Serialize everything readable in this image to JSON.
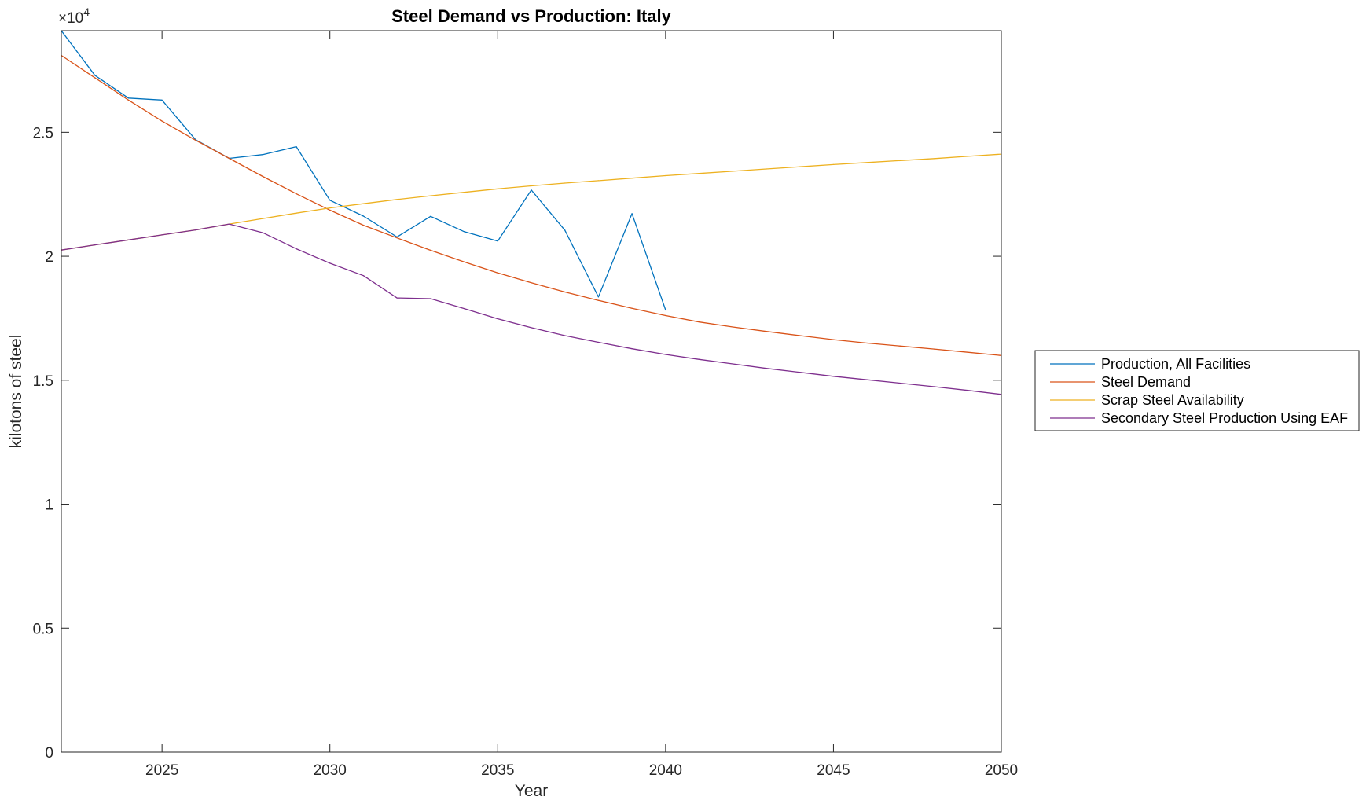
{
  "chart_data": {
    "type": "line",
    "title": "Steel Demand vs Production: Italy",
    "xlabel": "Year",
    "ylabel": "kilotons of steel",
    "y_exponent_label": "×10",
    "y_exponent": "4",
    "xlim": [
      2022,
      2050
    ],
    "ylim": [
      0,
      29100
    ],
    "xticks": [
      2025,
      2030,
      2035,
      2040,
      2045,
      2050
    ],
    "xtick_labels": [
      "2025",
      "2030",
      "2035",
      "2040",
      "2045",
      "2050"
    ],
    "yticks": [
      0,
      5000,
      10000,
      15000,
      20000,
      25000
    ],
    "ytick_labels": [
      "0",
      "0.5",
      "1",
      "1.5",
      "2",
      "2.5"
    ],
    "grid": false,
    "legend_position": "outside-right",
    "series": [
      {
        "name": "Production, All Facilities",
        "color": "#0072BD",
        "x": [
          2022,
          2023,
          2024,
          2025,
          2026,
          2027,
          2028,
          2029,
          2030,
          2031,
          2032,
          2033,
          2034,
          2035,
          2036,
          2037,
          2038,
          2039,
          2040
        ],
        "y": [
          29100,
          27300,
          26380,
          26300,
          24700,
          23950,
          24100,
          24420,
          22260,
          21620,
          20780,
          21610,
          20990,
          20610,
          22670,
          21050,
          18360,
          21720,
          17830
        ]
      },
      {
        "name": "Steel Demand",
        "color": "#D95319",
        "x": [
          2022,
          2023,
          2024,
          2025,
          2026,
          2027,
          2028,
          2029,
          2030,
          2031,
          2032,
          2033,
          2034,
          2035,
          2036,
          2037,
          2038,
          2039,
          2040,
          2041,
          2042,
          2043,
          2044,
          2045,
          2046,
          2047,
          2048,
          2049,
          2050
        ],
        "y": [
          28100,
          27200,
          26300,
          25450,
          24680,
          23950,
          23220,
          22520,
          21860,
          21250,
          20740,
          20240,
          19770,
          19330,
          18930,
          18560,
          18220,
          17900,
          17610,
          17350,
          17150,
          16970,
          16800,
          16640,
          16500,
          16380,
          16260,
          16130,
          16000
        ]
      },
      {
        "name": "Scrap Steel Availability",
        "color": "#EDB120",
        "x": [
          2022,
          2023,
          2024,
          2025,
          2026,
          2027,
          2028,
          2029,
          2030,
          2031,
          2032,
          2033,
          2034,
          2035,
          2036,
          2037,
          2038,
          2039,
          2040,
          2041,
          2042,
          2043,
          2044,
          2045,
          2046,
          2047,
          2048,
          2049,
          2050
        ],
        "y": [
          20250,
          20460,
          20660,
          20860,
          21060,
          21300,
          21520,
          21740,
          21950,
          22120,
          22290,
          22440,
          22580,
          22720,
          22840,
          22950,
          23050,
          23150,
          23250,
          23340,
          23430,
          23520,
          23610,
          23700,
          23780,
          23860,
          23940,
          24030,
          24120
        ]
      },
      {
        "name": "Secondary Steel Production Using EAF",
        "color": "#7E2F8E",
        "x": [
          2022,
          2023,
          2024,
          2025,
          2026,
          2027,
          2028,
          2029,
          2030,
          2031,
          2032,
          2033,
          2034,
          2035,
          2036,
          2037,
          2038,
          2039,
          2040,
          2041,
          2042,
          2043,
          2044,
          2045,
          2046,
          2047,
          2048,
          2049,
          2050
        ],
        "y": [
          20250,
          20460,
          20660,
          20860,
          21060,
          21300,
          20950,
          20300,
          19720,
          19220,
          18320,
          18290,
          17890,
          17480,
          17120,
          16800,
          16530,
          16270,
          16040,
          15840,
          15660,
          15480,
          15320,
          15160,
          15020,
          14880,
          14740,
          14590,
          14430
        ]
      }
    ]
  }
}
